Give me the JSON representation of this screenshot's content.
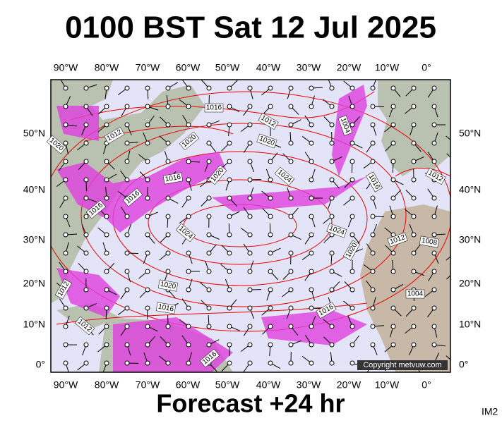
{
  "title": "0100 BST Sat 12 Jul 2025",
  "longitude_labels": [
    "90°W",
    "80°W",
    "70°W",
    "60°W",
    "50°W",
    "40°W",
    "30°W",
    "20°W",
    "10°W",
    "0°"
  ],
  "latitude_labels": [
    "50°N",
    "40°N",
    "30°N",
    "20°N",
    "10°N",
    "0°"
  ],
  "isobar_labels": [
    "1016",
    "1012",
    "1012",
    "1020",
    "1020",
    "1004",
    "1020",
    "1016",
    "1020",
    "1024",
    "1016",
    "1012",
    "1016",
    "1016",
    "1024",
    "1024",
    "1020",
    "1012",
    "1008",
    "1020",
    "1012",
    "1016",
    "1016",
    "1004",
    "1012",
    "1016"
  ],
  "copyright": "Copyright metvuw.com",
  "footer": "Forecast +24 hr",
  "image_id": "IM2"
}
